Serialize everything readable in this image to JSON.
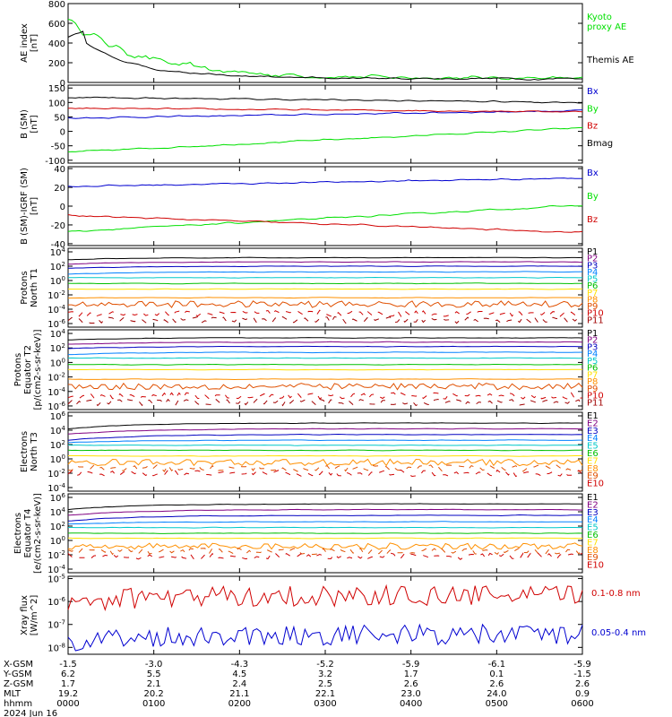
{
  "chart_data": [
    {
      "type": "line",
      "ylabel": [
        "AE index",
        "[nT]"
      ],
      "yticks": [
        "0",
        "200",
        "400",
        "600",
        "800"
      ],
      "ylim": [
        0,
        800
      ],
      "scale": "linear",
      "legend": "right",
      "series": [
        {
          "name": "Kyoto proxy AE",
          "label_lines": [
            "Kyoto",
            "proxy AE"
          ],
          "color": "#00e000",
          "kind": "kyoto"
        },
        {
          "name": "Themis AE",
          "label_lines": [
            "Themis AE"
          ],
          "color": "#000000",
          "kind": "themis"
        }
      ]
    },
    {
      "type": "line",
      "ylabel": [
        "B (SM)",
        "[nT]"
      ],
      "ylabel_sub": "t",
      "yticks": [
        "-100",
        "-50",
        "0",
        "50",
        "100",
        "150"
      ],
      "ylim": [
        -110,
        160
      ],
      "scale": "linear",
      "legend": "right",
      "series": [
        {
          "name": "Bx",
          "color": "#0000d0",
          "start": 46,
          "end": 72
        },
        {
          "name": "By",
          "color": "#00e000",
          "start": -72,
          "end": 12
        },
        {
          "name": "Bz",
          "color": "#d00000",
          "start": 80,
          "end": 68
        },
        {
          "name": "Bmag",
          "color": "#000000",
          "start": 118,
          "end": 100
        }
      ]
    },
    {
      "type": "line",
      "ylabel": [
        "B (SM)-IGRF (SM)",
        "[nT]"
      ],
      "yticks": [
        "-40",
        "-20",
        "0",
        "20",
        "40"
      ],
      "ylim": [
        -42,
        42
      ],
      "scale": "linear",
      "legend": "right",
      "series": [
        {
          "name": "Bx",
          "color": "#0000d0",
          "start": 21,
          "end": 30
        },
        {
          "name": "By",
          "color": "#00e000",
          "start": -27,
          "end": 1
        },
        {
          "name": "Bz",
          "color": "#d00000",
          "start": -10,
          "end": -28
        }
      ]
    },
    {
      "type": "line",
      "ylabel": [
        "Protons",
        "North T1"
      ],
      "yticks": [
        "10^4",
        "10^2",
        "10^0",
        "10^-2",
        "10^-4",
        "10^-6"
      ],
      "ylim": [
        -6.5,
        4.5
      ],
      "scale": "log",
      "legend": "right",
      "series": [
        {
          "name": "P1",
          "color": "#000000",
          "level": 3.2
        },
        {
          "name": "P2",
          "color": "#800080",
          "level": 2.6
        },
        {
          "name": "P3",
          "color": "#0000c0",
          "level": 2.0
        },
        {
          "name": "P4",
          "color": "#0080ff",
          "level": 1.2
        },
        {
          "name": "P5",
          "color": "#00c8c8",
          "level": 0.4
        },
        {
          "name": "P6",
          "color": "#00c000",
          "level": -0.4
        },
        {
          "name": "P7",
          "color": "#ffe000",
          "level": -1.2
        },
        {
          "name": "P8",
          "color": "#ff9000",
          "level": -2.4
        },
        {
          "name": "P9",
          "color": "#e05000",
          "level": -3.3
        },
        {
          "name": "P10",
          "color": "#d00000",
          "level": -4.6
        },
        {
          "name": "P11",
          "color": "#a00000",
          "level": -5.5
        }
      ]
    },
    {
      "type": "line",
      "ylabel": [
        "Protons",
        "Equator T2",
        "[p/(cm2-s-sr-keV)]"
      ],
      "yticks": [
        "10^4",
        "10^2",
        "10^0",
        "10^-2",
        "10^-4",
        "10^-6"
      ],
      "ylim": [
        -6.5,
        4.5
      ],
      "scale": "log",
      "legend": "right",
      "series": [
        {
          "name": "P1",
          "color": "#000000",
          "level": 3.4
        },
        {
          "name": "P2",
          "color": "#800080",
          "level": 2.8
        },
        {
          "name": "P3",
          "color": "#0000c0",
          "level": 2.2
        },
        {
          "name": "P4",
          "color": "#0080ff",
          "level": 1.4
        },
        {
          "name": "P5",
          "color": "#00c8c8",
          "level": 0.6
        },
        {
          "name": "P6",
          "color": "#00c000",
          "level": -0.3
        },
        {
          "name": "P7",
          "color": "#ffe000",
          "level": -1.0
        },
        {
          "name": "P8",
          "color": "#ff9000",
          "level": -2.3
        },
        {
          "name": "P9",
          "color": "#e05000",
          "level": -3.3
        },
        {
          "name": "P10",
          "color": "#d00000",
          "level": -4.6
        },
        {
          "name": "P11",
          "color": "#a00000",
          "level": -5.5
        }
      ]
    },
    {
      "type": "line",
      "ylabel": [
        "Electrons",
        "North T3"
      ],
      "yticks": [
        "10^6",
        "10^4",
        "10^2",
        "10^0",
        "10^-2",
        "10^-4"
      ],
      "ylim": [
        -4.5,
        6.5
      ],
      "scale": "log",
      "legend": "right",
      "series": [
        {
          "name": "E1",
          "color": "#000000",
          "level": 5.0
        },
        {
          "name": "E2",
          "color": "#800080",
          "level": 4.2
        },
        {
          "name": "E3",
          "color": "#0000c0",
          "level": 3.4
        },
        {
          "name": "E4",
          "color": "#0080ff",
          "level": 2.6
        },
        {
          "name": "E5",
          "color": "#00c8c8",
          "level": 1.9
        },
        {
          "name": "E6",
          "color": "#00c000",
          "level": 1.2
        },
        {
          "name": "E7",
          "color": "#ffe000",
          "level": 0.4
        },
        {
          "name": "E8",
          "color": "#ff9000",
          "level": -0.5
        },
        {
          "name": "E9",
          "color": "#e05000",
          "level": -1.3
        },
        {
          "name": "E10",
          "color": "#d00000",
          "level": -2.0
        }
      ]
    },
    {
      "type": "line",
      "ylabel": [
        "Electrons",
        "Equator T4",
        "[e/(cm2-s-sr-keV)]"
      ],
      "yticks": [
        "10^6",
        "10^4",
        "10^2",
        "10^0",
        "10^-2",
        "10^-4"
      ],
      "ylim": [
        -4.5,
        6.5
      ],
      "scale": "log",
      "legend": "right",
      "series": [
        {
          "name": "E1",
          "color": "#000000",
          "level": 5.1
        },
        {
          "name": "E2",
          "color": "#800080",
          "level": 4.3
        },
        {
          "name": "E3",
          "color": "#0000c0",
          "level": 3.5
        },
        {
          "name": "E4",
          "color": "#0080ff",
          "level": 2.6
        },
        {
          "name": "E5",
          "color": "#00c8c8",
          "level": 1.8
        },
        {
          "name": "E6",
          "color": "#00c000",
          "level": 1.0
        },
        {
          "name": "E7",
          "color": "#ffe000",
          "level": 0.3
        },
        {
          "name": "E8",
          "color": "#ff9000",
          "level": -0.8
        },
        {
          "name": "E9",
          "color": "#e05000",
          "level": -1.5
        },
        {
          "name": "E10",
          "color": "#d00000",
          "level": -2.2
        }
      ]
    },
    {
      "type": "line",
      "ylabel": [
        "Xray flux",
        "[W/m^2]"
      ],
      "yticks": [
        "10^-5",
        "10^-6",
        "10^-7",
        "10^-8"
      ],
      "ylim": [
        -8.3,
        -4.9
      ],
      "scale": "log",
      "legend": "right",
      "series": [
        {
          "name": "0.1-0.8 nm",
          "color": "#d00000",
          "level": -5.75
        },
        {
          "name": "0.05-0.4 nm",
          "color": "#0000d0",
          "level": -7.45
        }
      ]
    }
  ],
  "orbit_table": {
    "rows": [
      {
        "label": "X-GSM",
        "values": [
          "-1.5",
          "-3.0",
          "-4.3",
          "-5.2",
          "-5.9",
          "-6.1",
          "-5.9"
        ]
      },
      {
        "label": "Y-GSM",
        "values": [
          "6.2",
          "5.5",
          "4.5",
          "3.2",
          "1.7",
          "0.1",
          "-1.5"
        ]
      },
      {
        "label": "Z-GSM",
        "values": [
          "1.7",
          "2.1",
          "2.4",
          "2.5",
          "2.6",
          "2.6",
          "2.6"
        ]
      },
      {
        "label": "MLT",
        "values": [
          "19.2",
          "20.2",
          "21.1",
          "22.1",
          "23.0",
          "24.0",
          "0.9"
        ]
      },
      {
        "label": "hhmm",
        "values": [
          "0000",
          "0100",
          "0200",
          "0300",
          "0400",
          "0500",
          "0600"
        ]
      }
    ],
    "date": "2024 Jun 16"
  }
}
